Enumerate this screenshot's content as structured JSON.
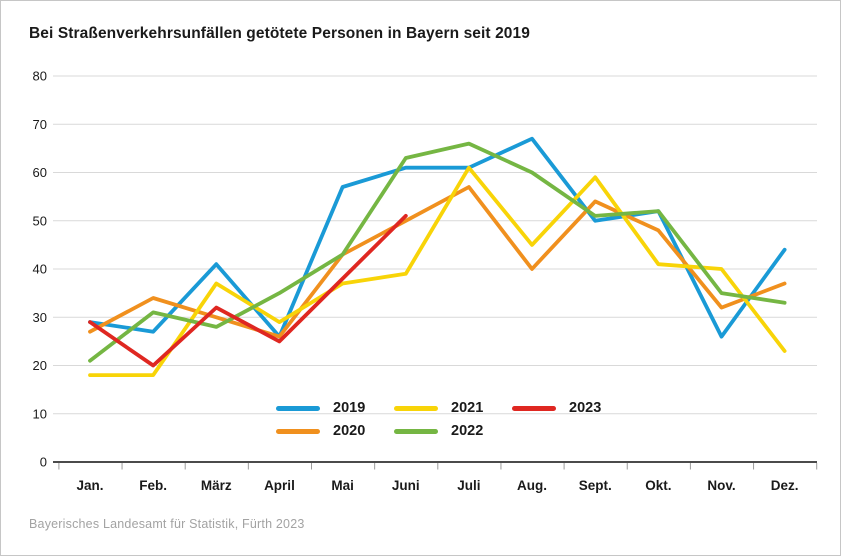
{
  "title": "Bei Straßenverkehrsunfällen getötete Personen in Bayern seit 2019",
  "source": "Bayerisches Landesamt für Statistik, Fürth 2023",
  "chart_data": {
    "type": "line",
    "title": "Bei Straßenverkehrsunfällen getötete Personen in Bayern seit 2019",
    "xlabel": "",
    "ylabel": "",
    "categories": [
      "Jan.",
      "Feb.",
      "März",
      "April",
      "Mai",
      "Juni",
      "Juli",
      "Aug.",
      "Sept.",
      "Okt.",
      "Nov.",
      "Dez."
    ],
    "ylim": [
      0,
      80
    ],
    "ytick_step": 10,
    "grid": true,
    "legend_position": "inside-bottom-center",
    "series": [
      {
        "name": "2019",
        "color": "#1a9ad6",
        "values": [
          29,
          27,
          41,
          26,
          57,
          61,
          61,
          67,
          50,
          52,
          26,
          44
        ]
      },
      {
        "name": "2020",
        "color": "#f0901e",
        "values": [
          27,
          34,
          30,
          26,
          43,
          50,
          57,
          40,
          54,
          48,
          32,
          37
        ]
      },
      {
        "name": "2021",
        "color": "#f8d408",
        "values": [
          18,
          18,
          37,
          29,
          37,
          39,
          61,
          45,
          59,
          41,
          40,
          23
        ]
      },
      {
        "name": "2022",
        "color": "#75b643",
        "values": [
          21,
          31,
          28,
          35,
          43,
          63,
          66,
          60,
          51,
          52,
          35,
          33
        ]
      },
      {
        "name": "2023",
        "color": "#df2721",
        "values": [
          29,
          20,
          32,
          25,
          38,
          51
        ]
      }
    ],
    "colors": {
      "grid": "#d9d9d9",
      "zero_axis": "#4b4b4b",
      "tick": "#9b9b9b",
      "text": "#1a1a1a",
      "source_text": "#a3a3a3"
    }
  }
}
